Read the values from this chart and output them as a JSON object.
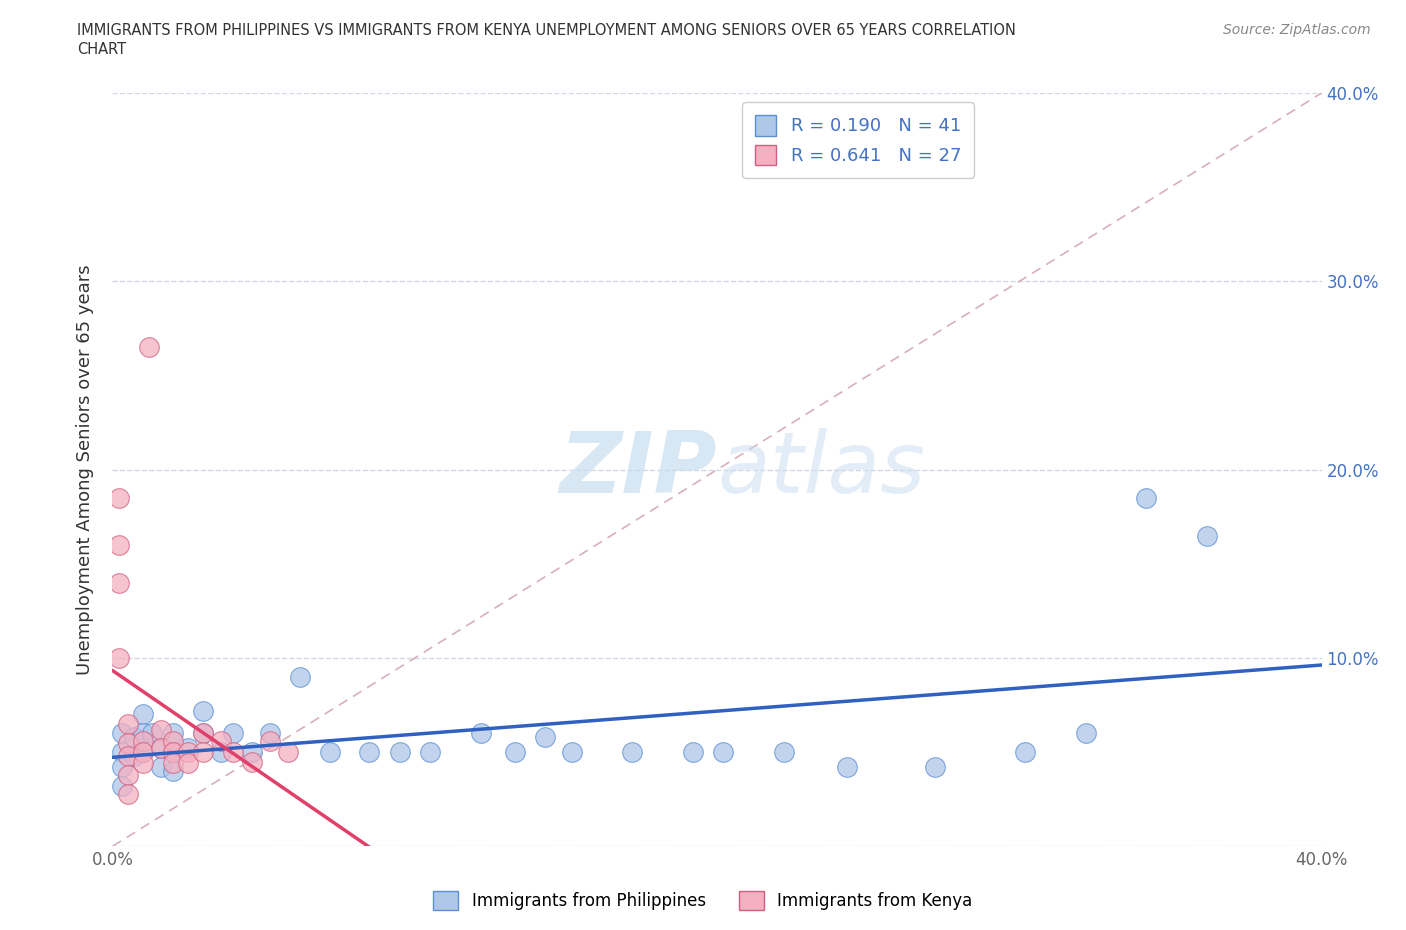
{
  "title_line1": "IMMIGRANTS FROM PHILIPPINES VS IMMIGRANTS FROM KENYA UNEMPLOYMENT AMONG SENIORS OVER 65 YEARS CORRELATION",
  "title_line2": "CHART",
  "source_text": "Source: ZipAtlas.com",
  "ylabel": "Unemployment Among Seniors over 65 years",
  "xlim": [
    0.0,
    0.4
  ],
  "ylim": [
    0.0,
    0.4
  ],
  "x_ticks": [
    0.0,
    0.1,
    0.2,
    0.3,
    0.4
  ],
  "y_ticks": [
    0.0,
    0.1,
    0.2,
    0.3,
    0.4
  ],
  "R_philippines": 0.19,
  "N_philippines": 41,
  "R_kenya": 0.641,
  "N_kenya": 27,
  "color_philippines": "#aec6e8",
  "color_kenya": "#f4b0c0",
  "edge_color_philippines": "#5b8fd4",
  "edge_color_kenya": "#d06080",
  "line_color_philippines": "#3060c0",
  "line_color_kenya": "#e0406a",
  "diag_color": "#d8b0b8",
  "grid_color": "#d0d8e8",
  "watermark_color": "#c8ddf0",
  "scatter_philippines": [
    [
      0.003,
      0.06
    ],
    [
      0.003,
      0.05
    ],
    [
      0.003,
      0.042
    ],
    [
      0.003,
      0.032
    ],
    [
      0.007,
      0.058
    ],
    [
      0.007,
      0.048
    ],
    [
      0.01,
      0.07
    ],
    [
      0.01,
      0.06
    ],
    [
      0.01,
      0.05
    ],
    [
      0.013,
      0.06
    ],
    [
      0.016,
      0.052
    ],
    [
      0.016,
      0.042
    ],
    [
      0.02,
      0.06
    ],
    [
      0.02,
      0.05
    ],
    [
      0.02,
      0.04
    ],
    [
      0.025,
      0.052
    ],
    [
      0.03,
      0.06
    ],
    [
      0.03,
      0.072
    ],
    [
      0.036,
      0.05
    ],
    [
      0.04,
      0.06
    ],
    [
      0.046,
      0.05
    ],
    [
      0.052,
      0.06
    ],
    [
      0.062,
      0.09
    ],
    [
      0.072,
      0.05
    ],
    [
      0.085,
      0.05
    ],
    [
      0.095,
      0.05
    ],
    [
      0.105,
      0.05
    ],
    [
      0.122,
      0.06
    ],
    [
      0.133,
      0.05
    ],
    [
      0.143,
      0.058
    ],
    [
      0.152,
      0.05
    ],
    [
      0.172,
      0.05
    ],
    [
      0.192,
      0.05
    ],
    [
      0.202,
      0.05
    ],
    [
      0.222,
      0.05
    ],
    [
      0.243,
      0.042
    ],
    [
      0.272,
      0.042
    ],
    [
      0.302,
      0.05
    ],
    [
      0.322,
      0.06
    ],
    [
      0.342,
      0.185
    ],
    [
      0.362,
      0.165
    ]
  ],
  "scatter_kenya": [
    [
      0.002,
      0.185
    ],
    [
      0.002,
      0.16
    ],
    [
      0.002,
      0.14
    ],
    [
      0.002,
      0.1
    ],
    [
      0.005,
      0.065
    ],
    [
      0.005,
      0.055
    ],
    [
      0.005,
      0.048
    ],
    [
      0.005,
      0.038
    ],
    [
      0.005,
      0.028
    ],
    [
      0.01,
      0.056
    ],
    [
      0.01,
      0.05
    ],
    [
      0.01,
      0.044
    ],
    [
      0.012,
      0.265
    ],
    [
      0.016,
      0.062
    ],
    [
      0.016,
      0.052
    ],
    [
      0.02,
      0.056
    ],
    [
      0.02,
      0.05
    ],
    [
      0.02,
      0.044
    ],
    [
      0.025,
      0.05
    ],
    [
      0.025,
      0.044
    ],
    [
      0.03,
      0.06
    ],
    [
      0.03,
      0.05
    ],
    [
      0.036,
      0.056
    ],
    [
      0.04,
      0.05
    ],
    [
      0.046,
      0.045
    ],
    [
      0.052,
      0.056
    ],
    [
      0.058,
      0.05
    ]
  ]
}
